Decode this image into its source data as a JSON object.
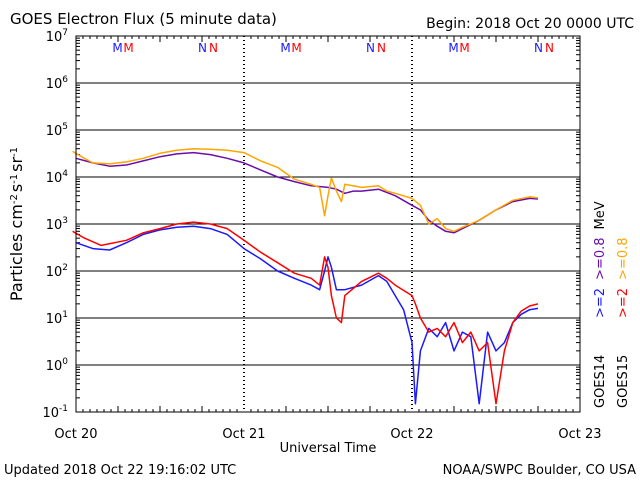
{
  "chart_data": {
    "type": "line",
    "title": "GOES Electron Flux (5 minute data)",
    "begin_label": "Begin: 2018 Oct 20 0000 UTC",
    "xlabel": "Universal Time",
    "ylabel_parts": {
      "base": "Particles cm",
      "e1": "-2",
      "s": "s",
      "e2": "-1",
      "sr": "sr",
      "e3": "-1"
    },
    "x_ticks": [
      "Oct 20",
      "Oct 21",
      "Oct 22",
      "Oct 23"
    ],
    "xlim_days": [
      0,
      3
    ],
    "ylim": [
      0.1,
      10000000
    ],
    "y_scale": "log",
    "y_ticks": [
      {
        "base": "10",
        "exp": "7"
      },
      {
        "base": "10",
        "exp": "6"
      },
      {
        "base": "10",
        "exp": "5"
      },
      {
        "base": "10",
        "exp": "4"
      },
      {
        "base": "10",
        "exp": "3"
      },
      {
        "base": "10",
        "exp": "2"
      },
      {
        "base": "10",
        "exp": "1"
      },
      {
        "base": "10",
        "exp": "0"
      },
      {
        "base": "10",
        "exp": "-1"
      }
    ],
    "threshold_value": 1000,
    "markers": [
      {
        "x": 0.27,
        "letters": [
          {
            "t": "M",
            "color": "#1a1aff"
          },
          {
            "t": "M",
            "color": "#ff0000"
          }
        ]
      },
      {
        "x": 0.78,
        "letters": [
          {
            "t": "N",
            "color": "#1a1aff"
          },
          {
            "t": "N",
            "color": "#ff0000"
          }
        ]
      },
      {
        "x": 1.27,
        "letters": [
          {
            "t": "M",
            "color": "#1a1aff"
          },
          {
            "t": "M",
            "color": "#ff0000"
          }
        ]
      },
      {
        "x": 1.78,
        "letters": [
          {
            "t": "N",
            "color": "#1a1aff"
          },
          {
            "t": "N",
            "color": "#ff0000"
          }
        ]
      },
      {
        "x": 2.27,
        "letters": [
          {
            "t": "M",
            "color": "#1a1aff"
          },
          {
            "t": "M",
            "color": "#ff0000"
          }
        ]
      },
      {
        "x": 2.78,
        "letters": [
          {
            "t": "N",
            "color": "#1a1aff"
          },
          {
            "t": "N",
            "color": "#ff0000"
          }
        ]
      }
    ],
    "legend": {
      "goes14": "GOES14",
      "goes15": "GOES15",
      "e2_14": ">=2",
      "e08_14": ">=0.8",
      "e2_15": ">=2",
      "e08_15": ">=0.8",
      "mev": "MeV"
    },
    "series": [
      {
        "name": "GOES14 >=0.8 MeV",
        "color": "#6a0dad",
        "points": [
          [
            0.0,
            25000
          ],
          [
            0.1,
            20000
          ],
          [
            0.2,
            17000
          ],
          [
            0.3,
            18000
          ],
          [
            0.4,
            22000
          ],
          [
            0.5,
            27000
          ],
          [
            0.6,
            31000
          ],
          [
            0.7,
            33000
          ],
          [
            0.8,
            30000
          ],
          [
            0.9,
            25000
          ],
          [
            1.0,
            20000
          ],
          [
            1.1,
            14000
          ],
          [
            1.2,
            10000
          ],
          [
            1.3,
            8000
          ],
          [
            1.4,
            6500
          ],
          [
            1.5,
            6000
          ],
          [
            1.55,
            5500
          ],
          [
            1.6,
            4500
          ],
          [
            1.65,
            5000
          ],
          [
            1.7,
            5000
          ],
          [
            1.8,
            5500
          ],
          [
            1.9,
            4000
          ],
          [
            2.0,
            2500
          ],
          [
            2.05,
            2000
          ],
          [
            2.1,
            1200
          ],
          [
            2.15,
            900
          ],
          [
            2.2,
            700
          ],
          [
            2.25,
            650
          ],
          [
            2.3,
            800
          ],
          [
            2.4,
            1200
          ],
          [
            2.5,
            2000
          ],
          [
            2.6,
            3000
          ],
          [
            2.7,
            3500
          ],
          [
            2.75,
            3400
          ]
        ]
      },
      {
        "name": "GOES15 >=0.8 MeV",
        "color": "#ffa500",
        "points": [
          [
            -0.02,
            35000
          ],
          [
            0.05,
            25000
          ],
          [
            0.1,
            20000
          ],
          [
            0.2,
            19000
          ],
          [
            0.3,
            21000
          ],
          [
            0.4,
            25000
          ],
          [
            0.5,
            32000
          ],
          [
            0.6,
            37000
          ],
          [
            0.7,
            40000
          ],
          [
            0.8,
            39000
          ],
          [
            0.9,
            37000
          ],
          [
            1.0,
            33000
          ],
          [
            1.1,
            22000
          ],
          [
            1.2,
            16000
          ],
          [
            1.3,
            9000
          ],
          [
            1.4,
            7000
          ],
          [
            1.45,
            6000
          ],
          [
            1.48,
            1500
          ],
          [
            1.5,
            4000
          ],
          [
            1.52,
            9500
          ],
          [
            1.55,
            5000
          ],
          [
            1.58,
            3000
          ],
          [
            1.6,
            7000
          ],
          [
            1.7,
            6000
          ],
          [
            1.8,
            6500
          ],
          [
            1.85,
            5000
          ],
          [
            1.9,
            4500
          ],
          [
            2.0,
            3500
          ],
          [
            2.05,
            2500
          ],
          [
            2.1,
            1000
          ],
          [
            2.15,
            1300
          ],
          [
            2.2,
            800
          ],
          [
            2.25,
            700
          ],
          [
            2.3,
            850
          ],
          [
            2.4,
            1200
          ],
          [
            2.5,
            2000
          ],
          [
            2.6,
            3200
          ],
          [
            2.7,
            3800
          ],
          [
            2.75,
            3600
          ]
        ]
      },
      {
        "name": "GOES14 >=2 MeV",
        "color": "#1a1aff",
        "points": [
          [
            0.0,
            400
          ],
          [
            0.1,
            300
          ],
          [
            0.2,
            280
          ],
          [
            0.3,
            400
          ],
          [
            0.4,
            600
          ],
          [
            0.5,
            750
          ],
          [
            0.6,
            850
          ],
          [
            0.7,
            900
          ],
          [
            0.8,
            800
          ],
          [
            0.9,
            600
          ],
          [
            1.0,
            300
          ],
          [
            1.1,
            180
          ],
          [
            1.2,
            100
          ],
          [
            1.3,
            70
          ],
          [
            1.4,
            50
          ],
          [
            1.45,
            40
          ],
          [
            1.48,
            100
          ],
          [
            1.5,
            200
          ],
          [
            1.52,
            120
          ],
          [
            1.55,
            40
          ],
          [
            1.6,
            40
          ],
          [
            1.7,
            50
          ],
          [
            1.8,
            80
          ],
          [
            1.85,
            60
          ],
          [
            1.9,
            30
          ],
          [
            1.95,
            15
          ],
          [
            2.0,
            3
          ],
          [
            2.02,
            0.15
          ],
          [
            2.05,
            2
          ],
          [
            2.1,
            6
          ],
          [
            2.15,
            4
          ],
          [
            2.2,
            8
          ],
          [
            2.25,
            2
          ],
          [
            2.3,
            5
          ],
          [
            2.35,
            4
          ],
          [
            2.4,
            0.15
          ],
          [
            2.45,
            5
          ],
          [
            2.5,
            2
          ],
          [
            2.55,
            3
          ],
          [
            2.6,
            8
          ],
          [
            2.65,
            12
          ],
          [
            2.7,
            15
          ],
          [
            2.75,
            16
          ]
        ]
      },
      {
        "name": "GOES15 >=2 MeV",
        "color": "#ff0000",
        "points": [
          [
            -0.02,
            700
          ],
          [
            0.05,
            500
          ],
          [
            0.15,
            350
          ],
          [
            0.3,
            450
          ],
          [
            0.4,
            650
          ],
          [
            0.5,
            800
          ],
          [
            0.6,
            1000
          ],
          [
            0.7,
            1100
          ],
          [
            0.8,
            1000
          ],
          [
            0.9,
            800
          ],
          [
            1.0,
            450
          ],
          [
            1.1,
            250
          ],
          [
            1.2,
            150
          ],
          [
            1.3,
            90
          ],
          [
            1.4,
            70
          ],
          [
            1.45,
            50
          ],
          [
            1.48,
            200
          ],
          [
            1.5,
            120
          ],
          [
            1.52,
            30
          ],
          [
            1.55,
            10
          ],
          [
            1.58,
            8
          ],
          [
            1.6,
            30
          ],
          [
            1.7,
            60
          ],
          [
            1.8,
            90
          ],
          [
            1.85,
            70
          ],
          [
            1.9,
            50
          ],
          [
            2.0,
            30
          ],
          [
            2.02,
            20
          ],
          [
            2.05,
            10
          ],
          [
            2.1,
            5
          ],
          [
            2.15,
            6
          ],
          [
            2.2,
            4
          ],
          [
            2.25,
            8
          ],
          [
            2.3,
            3
          ],
          [
            2.35,
            5
          ],
          [
            2.4,
            2
          ],
          [
            2.45,
            3
          ],
          [
            2.5,
            0.15
          ],
          [
            2.55,
            2
          ],
          [
            2.6,
            8
          ],
          [
            2.65,
            14
          ],
          [
            2.7,
            18
          ],
          [
            2.75,
            20
          ]
        ]
      }
    ]
  },
  "footer": {
    "updated": "Updated 2018 Oct 22 19:16:02 UTC",
    "credit": "NOAA/SWPC Boulder, CO USA"
  }
}
